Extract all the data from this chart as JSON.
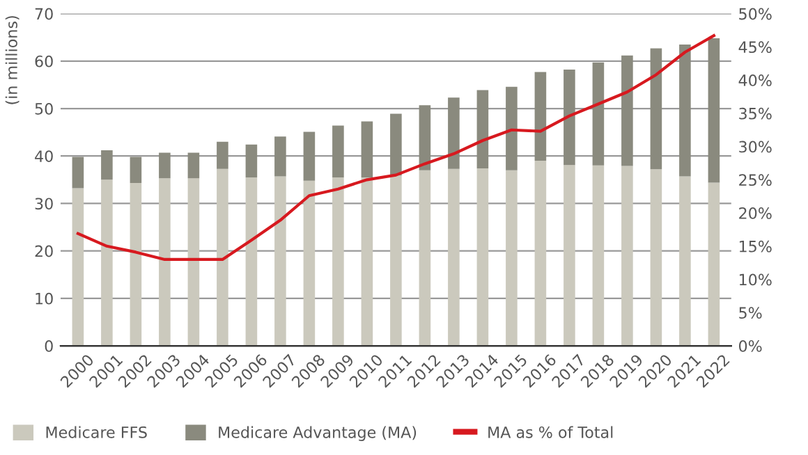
{
  "chart_data": {
    "type": "bar",
    "stacked": true,
    "ylabel": "(in millions)",
    "categories": [
      "2000",
      "2001",
      "2002",
      "2003",
      "2004",
      "2005",
      "2006",
      "2007",
      "2008",
      "2009",
      "2010",
      "2011",
      "2012",
      "2013",
      "2014",
      "2015",
      "2016",
      "2017",
      "2018",
      "2019",
      "2020",
      "2021",
      "2022"
    ],
    "series": [
      {
        "name": "Medicare FFS",
        "color": "#cbc9bd",
        "values": [
          33.2,
          35.0,
          34.3,
          35.3,
          35.3,
          37.3,
          35.5,
          35.7,
          34.8,
          35.5,
          35.5,
          35.9,
          37.0,
          37.3,
          37.4,
          37.0,
          39.0,
          38.1,
          38.0,
          37.9,
          37.2,
          35.7,
          34.4
        ]
      },
      {
        "name": "Medicare Advantage (MA)",
        "color": "#8a8a7e",
        "values": [
          6.6,
          6.2,
          5.5,
          5.4,
          5.4,
          5.7,
          6.9,
          8.4,
          10.3,
          10.9,
          11.8,
          13.0,
          13.7,
          15.0,
          16.5,
          17.6,
          18.7,
          20.1,
          21.7,
          23.3,
          25.5,
          27.8,
          30.4
        ]
      },
      {
        "name": "MA as % of Total",
        "type": "line",
        "axis": "y2",
        "color": "#d7191f",
        "values": [
          16.9,
          15.0,
          14.1,
          13.0,
          13.0,
          13.0,
          15.9,
          18.9,
          22.6,
          23.6,
          25.0,
          25.7,
          27.4,
          28.9,
          30.9,
          32.5,
          32.3,
          34.6,
          36.4,
          38.2,
          40.8,
          44.2,
          46.7
        ]
      }
    ],
    "ylim": [
      0,
      70
    ],
    "yticks": [
      0,
      10,
      20,
      30,
      40,
      50,
      60,
      70
    ],
    "y2lim": [
      0,
      50
    ],
    "y2ticks": [
      {
        "value": 0,
        "label": "0%"
      },
      {
        "value": 5,
        "label": "5%"
      },
      {
        "value": 10,
        "label": "10%"
      },
      {
        "value": 15,
        "label": "15%"
      },
      {
        "value": 20,
        "label": "20%"
      },
      {
        "value": 25,
        "label": "25%"
      },
      {
        "value": 30,
        "label": "30%"
      },
      {
        "value": 35,
        "label": "35%"
      },
      {
        "value": 40,
        "label": "40%"
      },
      {
        "value": 45,
        "label": "45%"
      },
      {
        "value": 50,
        "label": "50%"
      }
    ],
    "grid": "y",
    "legend": "bottom",
    "marker": "none",
    "line_style": "solid"
  }
}
